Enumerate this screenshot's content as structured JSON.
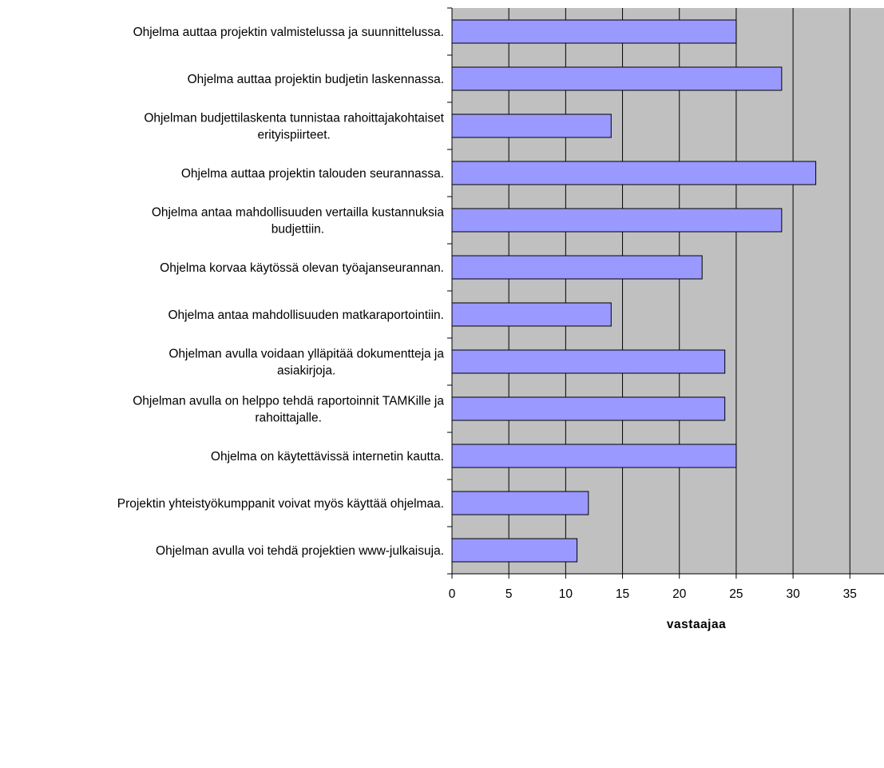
{
  "chart_data": {
    "type": "bar",
    "orientation": "horizontal",
    "categories": [
      [
        "Ohjelma auttaa projektin valmistelussa ja suunnittelussa."
      ],
      [
        "Ohjelma auttaa projektin budjetin laskennassa."
      ],
      [
        "Ohjelman budjettilaskenta tunnistaa rahoittajakohtaiset",
        "erityispiirteet."
      ],
      [
        "Ohjelma auttaa projektin talouden seurannassa."
      ],
      [
        "Ohjelma antaa mahdollisuuden vertailla kustannuksia",
        "budjettiin."
      ],
      [
        "Ohjelma korvaa käytössä olevan työajanseurannan."
      ],
      [
        "Ohjelma antaa mahdollisuuden matkaraportointiin."
      ],
      [
        "Ohjelman avulla voidaan ylläpitää dokumentteja ja",
        "asiakirjoja."
      ],
      [
        "Ohjelman avulla on helppo tehdä  raportoinnit TAMKille ja",
        "rahoittajalle."
      ],
      [
        "Ohjelma on käytettävissä internetin kautta."
      ],
      [
        "Projektin yhteistyökumppanit  voivat myös käyttää ohjelmaa."
      ],
      [
        "Ohjelman avulla voi tehdä projektien  www-julkaisuja."
      ]
    ],
    "values": [
      25,
      29,
      14,
      32,
      29,
      22,
      14,
      24,
      24,
      25,
      12,
      11
    ],
    "xlabel": "vastaajaa",
    "xlim": [
      0,
      38
    ],
    "xticks": [
      0,
      5,
      10,
      15,
      20,
      25,
      30,
      35
    ],
    "grid": "vertical",
    "legend": "none",
    "colors": {
      "bar_fill": "#9999ff",
      "bar_stroke": "#000000",
      "plot_background": "#c0c0c0",
      "grid": "#000000"
    }
  }
}
